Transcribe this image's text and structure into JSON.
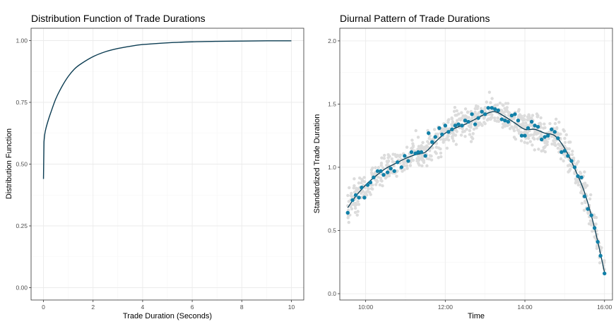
{
  "chart_data": [
    {
      "type": "line",
      "title": "Distribution Function of Trade Durations",
      "xlabel": "Trade Duration (Seconds)",
      "ylabel": "Distribution Function",
      "xlim": [
        -0.5,
        10.5
      ],
      "ylim": [
        -0.05,
        1.05
      ],
      "x_ticks": [
        0,
        2,
        4,
        6,
        8,
        10
      ],
      "x_tick_labels": [
        "0",
        "2",
        "4",
        "6",
        "8",
        "10"
      ],
      "y_ticks": [
        0,
        0.25,
        0.5,
        0.75,
        1.0
      ],
      "y_tick_labels": [
        "0.00",
        "0.25",
        "0.50",
        "0.75",
        "1.00"
      ],
      "grid": true,
      "line_color": "#0b3c52",
      "series": [
        {
          "x": [
            0,
            0.02,
            0.05,
            0.1,
            0.2,
            0.3,
            0.5,
            0.75,
            1,
            1.25,
            1.5,
            2,
            2.5,
            3,
            3.5,
            4,
            5,
            6,
            7,
            8,
            9,
            10
          ],
          "y": [
            0.44,
            0.59,
            0.62,
            0.645,
            0.68,
            0.71,
            0.765,
            0.815,
            0.855,
            0.885,
            0.905,
            0.935,
            0.955,
            0.968,
            0.977,
            0.984,
            0.991,
            0.995,
            0.997,
            0.998,
            0.999,
            0.999
          ]
        }
      ]
    },
    {
      "type": "scatter",
      "title": "Diurnal Pattern of Trade Durations",
      "xlabel": "Time",
      "ylabel": "Standardized Trade Duration",
      "xlim": [
        9.35,
        16.2
      ],
      "ylim": [
        -0.05,
        2.1
      ],
      "x_ticks": [
        10,
        12,
        14,
        16
      ],
      "x_tick_labels": [
        "10:00",
        "12:00",
        "14:00",
        "16:00"
      ],
      "y_ticks": [
        0,
        0.5,
        1.0,
        1.5,
        2.0
      ],
      "y_tick_labels": [
        "0.0",
        "0.5",
        "1.0",
        "1.5",
        "2.0"
      ],
      "grid": true,
      "point_color": "#1180a8",
      "background_point_color": "#dcdcdc",
      "smooth_color": "#0b3c52",
      "series": [
        {
          "kind": "binned-means",
          "x": [
            9.55,
            9.67,
            9.75,
            9.83,
            9.9,
            9.97,
            10.05,
            10.12,
            10.2,
            10.3,
            10.38,
            10.45,
            10.55,
            10.63,
            10.72,
            10.8,
            10.9,
            10.98,
            11.07,
            11.15,
            11.25,
            11.32,
            11.4,
            11.5,
            11.58,
            11.67,
            11.75,
            11.85,
            11.92,
            12.0,
            12.08,
            12.17,
            12.25,
            12.33,
            12.42,
            12.5,
            12.58,
            12.67,
            12.75,
            12.83,
            12.92,
            13.0,
            13.08,
            13.17,
            13.25,
            13.33,
            13.42,
            13.5,
            13.58,
            13.67,
            13.75,
            13.83,
            13.92,
            14.0,
            14.08,
            14.17,
            14.25,
            14.33,
            14.42,
            14.5,
            14.58,
            14.67,
            14.75,
            14.83,
            14.92,
            15.0,
            15.08,
            15.17,
            15.25,
            15.33,
            15.42,
            15.5,
            15.58,
            15.67,
            15.75,
            15.83,
            15.9,
            16.0
          ],
          "y": [
            0.64,
            0.74,
            0.78,
            0.76,
            0.84,
            0.76,
            0.86,
            0.88,
            0.92,
            0.97,
            0.97,
            0.94,
            0.96,
            0.99,
            0.97,
            1.04,
            1.0,
            1.09,
            1.05,
            1.12,
            1.11,
            1.12,
            1.12,
            1.09,
            1.27,
            1.2,
            1.24,
            1.31,
            1.26,
            1.33,
            1.28,
            1.3,
            1.33,
            1.34,
            1.33,
            1.37,
            1.36,
            1.42,
            1.34,
            1.39,
            1.44,
            1.42,
            1.47,
            1.47,
            1.46,
            1.45,
            1.38,
            1.37,
            1.36,
            1.41,
            1.42,
            1.37,
            1.25,
            1.25,
            1.31,
            1.36,
            1.33,
            1.32,
            1.22,
            1.24,
            1.25,
            1.3,
            1.28,
            1.23,
            1.12,
            1.13,
            1.09,
            1.05,
            1.0,
            0.93,
            0.92,
            0.77,
            0.67,
            0.62,
            0.52,
            0.41,
            0.3,
            0.16
          ]
        },
        {
          "kind": "loess-smooth",
          "x": [
            9.55,
            9.75,
            10.0,
            10.25,
            10.5,
            10.75,
            11.0,
            11.25,
            11.5,
            11.75,
            12.0,
            12.25,
            12.5,
            12.75,
            13.0,
            13.25,
            13.5,
            13.75,
            14.0,
            14.25,
            14.5,
            14.75,
            15.0,
            15.25,
            15.5,
            15.75,
            16.0
          ],
          "y": [
            0.68,
            0.77,
            0.86,
            0.93,
            0.99,
            1.03,
            1.07,
            1.1,
            1.12,
            1.2,
            1.27,
            1.31,
            1.34,
            1.38,
            1.42,
            1.44,
            1.4,
            1.35,
            1.3,
            1.3,
            1.27,
            1.25,
            1.15,
            0.99,
            0.8,
            0.52,
            0.17
          ]
        }
      ]
    }
  ]
}
